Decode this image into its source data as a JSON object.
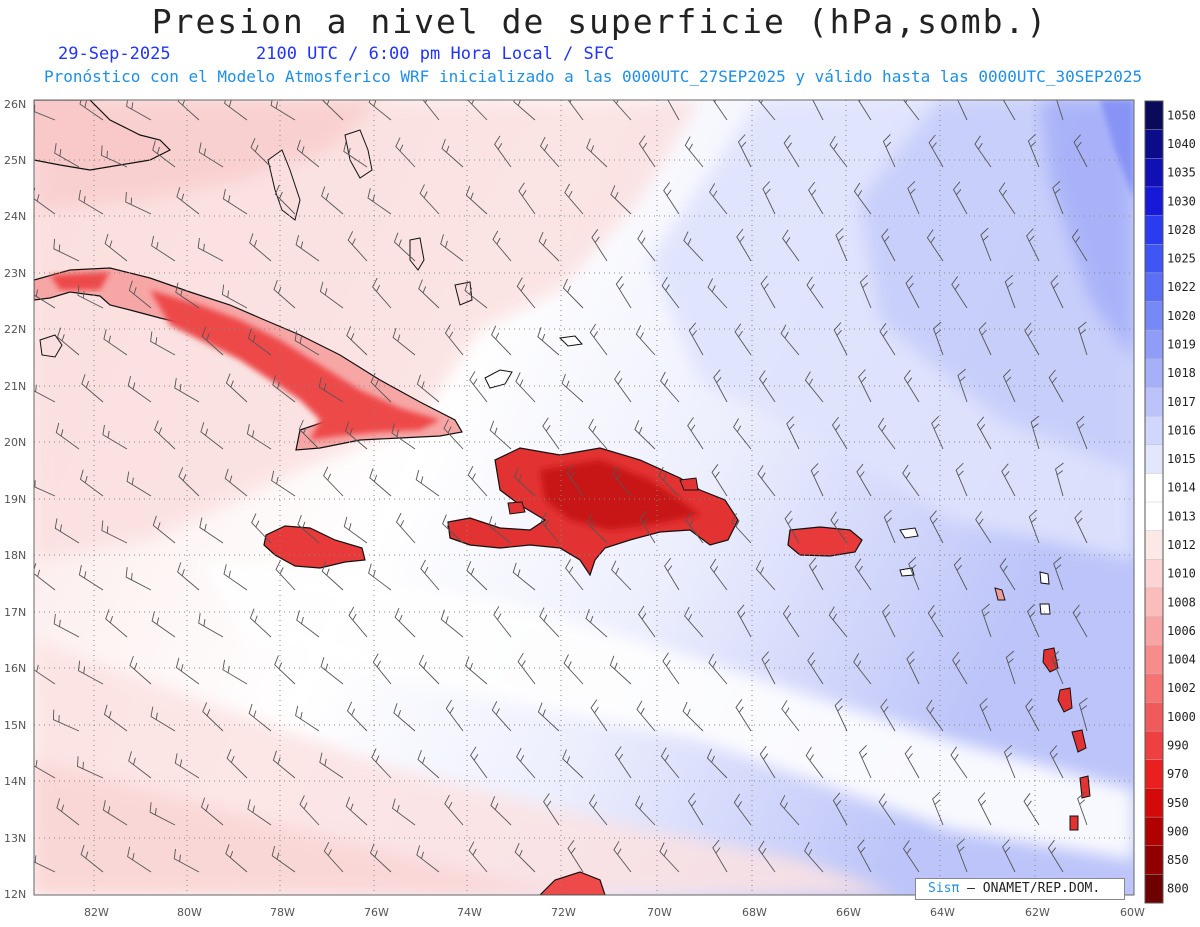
{
  "title": "Presion a nivel de superficie (hPa,somb.)",
  "date": "29-Sep-2025",
  "time_info": "2100 UTC / 6:00 pm Hora Local / SFC",
  "forecast_info": "Pronóstico con el Modelo Atmosferico WRF inicializado a las 0000UTC_27SEP2025 y válido hasta las  0000UTC_30SEP2025",
  "credit": {
    "brand": "Sisπ",
    "rest": "– ONAMET/REP.DOM."
  },
  "lat_labels": [
    "26N",
    "25N",
    "24N",
    "23N",
    "22N",
    "21N",
    "20N",
    "19N",
    "18N",
    "17N",
    "16N",
    "15N",
    "14N",
    "13N",
    "12N"
  ],
  "lon_labels": [
    "82W",
    "80W",
    "78W",
    "76W",
    "74W",
    "72W",
    "70W",
    "68W",
    "66W",
    "64W",
    "62W",
    "60W"
  ],
  "colorbar": {
    "levels": [
      "1050",
      "1040",
      "1035",
      "1030",
      "1028",
      "1025",
      "1022",
      "1020",
      "1019",
      "1018",
      "1017",
      "1016",
      "1015",
      "1014",
      "1013",
      "1012",
      "1010",
      "1008",
      "1006",
      "1004",
      "1002",
      "1000",
      "990",
      "970",
      "950",
      "900",
      "850",
      "800"
    ],
    "colors": [
      "#0a0a5a",
      "#0c0c8a",
      "#1010b4",
      "#1818d8",
      "#2a3cf0",
      "#3f56f5",
      "#5a6ef6",
      "#7788f7",
      "#8f9cf8",
      "#a5b0f9",
      "#bbc3fa",
      "#d0d6fc",
      "#e3e7fd",
      "#ffffff",
      "#ffffff",
      "#fde8e8",
      "#fcd4d4",
      "#fbbcbc",
      "#f9a4a4",
      "#f78c8c",
      "#f47474",
      "#f15a5a",
      "#ee4040",
      "#e82020",
      "#d40a0a",
      "#b00000",
      "#900000",
      "#6e0000"
    ]
  }
}
